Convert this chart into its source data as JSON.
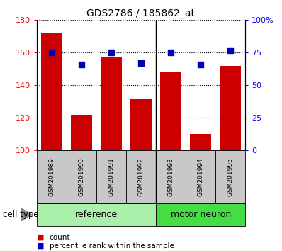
{
  "title": "GDS2786 / 185862_at",
  "samples": [
    "GSM201989",
    "GSM201990",
    "GSM201991",
    "GSM201992",
    "GSM201993",
    "GSM201994",
    "GSM201995"
  ],
  "counts": [
    172,
    122,
    157,
    132,
    148,
    110,
    152
  ],
  "percentiles": [
    75,
    66,
    75,
    67,
    75,
    66,
    77
  ],
  "ylim_left": [
    100,
    180
  ],
  "ylim_right": [
    0,
    100
  ],
  "yticks_left": [
    100,
    120,
    140,
    160,
    180
  ],
  "yticks_right": [
    0,
    25,
    50,
    75,
    100
  ],
  "ytick_labels_right": [
    "0",
    "25",
    "50",
    "75",
    "100%"
  ],
  "bar_color": "#cc0000",
  "dot_color": "#0000bb",
  "bar_width": 0.7,
  "tick_area_color": "#c8c8c8",
  "group_ref_color": "#aaf0aa",
  "group_motor_color": "#44dd44",
  "legend_count_label": "count",
  "legend_pct_label": "percentile rank within the sample",
  "cell_type_label": "cell type",
  "ref_label": "reference",
  "motor_label": "motor neuron"
}
